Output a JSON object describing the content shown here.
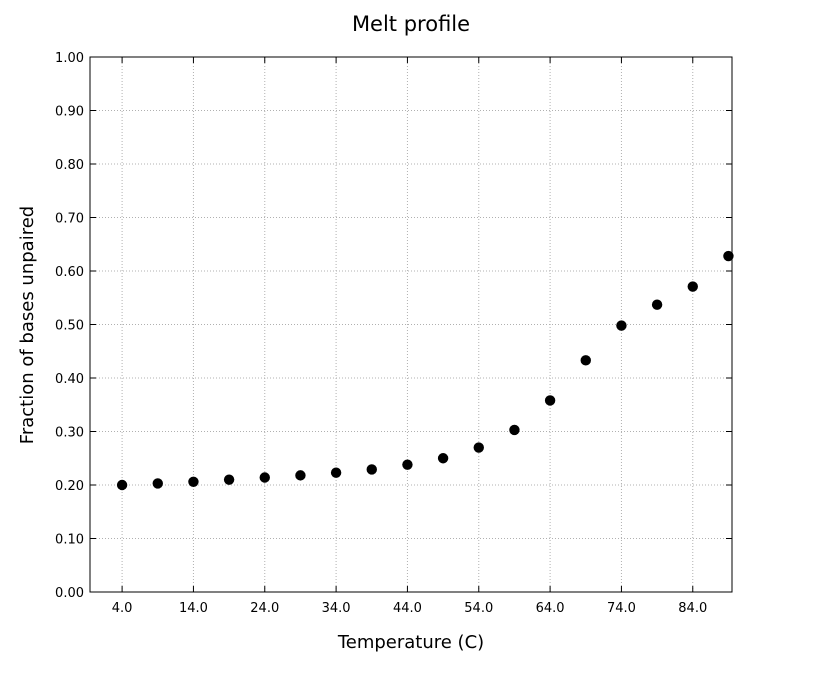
{
  "chart_data": {
    "type": "scatter",
    "title": "Melt profile",
    "xlabel": "Temperature (C)",
    "ylabel": "Fraction of bases unpaired",
    "xlim": [
      -0.5,
      89.5
    ],
    "ylim": [
      0.0,
      1.0
    ],
    "xticks": [
      4.0,
      14.0,
      24.0,
      34.0,
      44.0,
      54.0,
      64.0,
      74.0,
      84.0
    ],
    "xtick_labels": [
      "4.0",
      "14.0",
      "24.0",
      "34.0",
      "44.0",
      "54.0",
      "64.0",
      "74.0",
      "84.0"
    ],
    "yticks": [
      0.0,
      0.1,
      0.2,
      0.3,
      0.4,
      0.5,
      0.6,
      0.7,
      0.8,
      0.9,
      1.0
    ],
    "ytick_labels": [
      "0.00",
      "0.10",
      "0.20",
      "0.30",
      "0.40",
      "0.50",
      "0.60",
      "0.70",
      "0.80",
      "0.90",
      "1.00"
    ],
    "grid": true,
    "marker_color": "#000000",
    "series": [
      {
        "x": [
          4,
          9,
          14,
          19,
          24,
          29,
          34,
          39,
          44,
          49,
          54,
          59,
          64,
          69,
          74,
          79,
          84,
          89
        ],
        "y": [
          0.2,
          0.203,
          0.206,
          0.21,
          0.214,
          0.218,
          0.223,
          0.229,
          0.238,
          0.25,
          0.27,
          0.303,
          0.358,
          0.433,
          0.498,
          0.537,
          0.571,
          0.628
        ]
      }
    ]
  }
}
